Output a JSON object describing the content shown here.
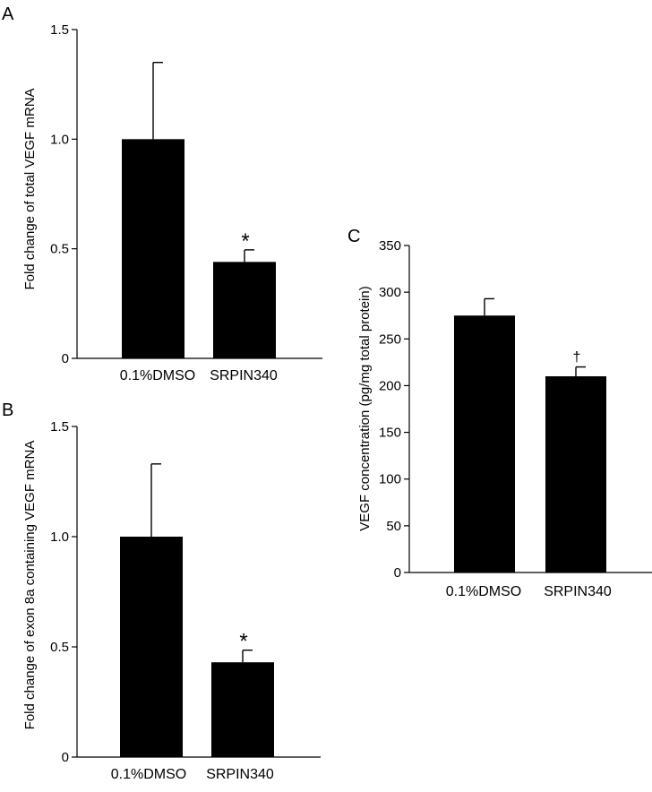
{
  "colors": {
    "bar": "#000000",
    "axis": "#000000",
    "background": "#ffffff"
  },
  "chart_data": [
    {
      "panel": "A",
      "type": "bar",
      "title": "",
      "categories": [
        "0.1%DMSO",
        "SRPIN340"
      ],
      "values": [
        1.0,
        0.44
      ],
      "errors": [
        0.35,
        0.055
      ],
      "annotations": [
        "",
        "*"
      ],
      "xlabel": "",
      "ylabel": "Fold change of total VEGF mRNA",
      "ylim": [
        0,
        1.5
      ],
      "yticks": [
        0,
        0.5,
        1.0,
        1.5
      ],
      "ytick_labels": [
        "0",
        "0.5",
        "1.0",
        "1.5"
      ],
      "grid": false
    },
    {
      "panel": "B",
      "type": "bar",
      "title": "",
      "categories": [
        "0.1%DMSO",
        "SRPIN340"
      ],
      "values": [
        1.0,
        0.43
      ],
      "errors": [
        0.33,
        0.055
      ],
      "annotations": [
        "",
        "*"
      ],
      "xlabel": "",
      "ylabel": "Fold change of exon 8a containing  VEGF mRNA",
      "ylim": [
        0,
        1.5
      ],
      "yticks": [
        0,
        0.5,
        1.0,
        1.5
      ],
      "ytick_labels": [
        "0",
        "0.5",
        "1.0",
        "1.5"
      ],
      "grid": false
    },
    {
      "panel": "C",
      "type": "bar",
      "title": "",
      "categories": [
        "0.1%DMSO",
        "SRPIN340"
      ],
      "values": [
        275,
        210
      ],
      "errors": [
        18,
        10
      ],
      "annotations": [
        "",
        "†"
      ],
      "xlabel": "",
      "ylabel": "VEGF concentration (pg/mg total protein)",
      "ylim": [
        0,
        350
      ],
      "yticks": [
        0,
        50,
        100,
        150,
        200,
        250,
        300,
        350
      ],
      "ytick_labels": [
        "0",
        "50",
        "100",
        "150",
        "200",
        "250",
        "300",
        "350"
      ],
      "grid": false
    }
  ]
}
